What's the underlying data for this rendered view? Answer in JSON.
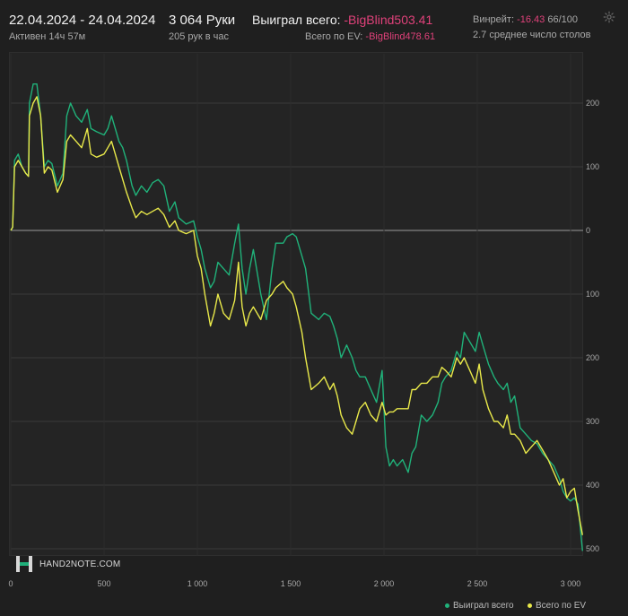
{
  "header": {
    "date_range": "22.04.2024 - 24.04.2024",
    "active": "Активен 14ч 57м",
    "hands": "3 064 Руки",
    "hands_per_hour": "205 рук в час",
    "won_label": "Выиграл всего:",
    "won_value": "-BigBlind503.41",
    "ev_label": "Всего по EV:",
    "ev_value": "-BigBlind478.61",
    "winrate_label": "Винрейт:",
    "winrate_value": "-16.43",
    "winrate_suffix": "66/100",
    "avg_tables": "2.7 среднее число столов"
  },
  "brand": {
    "logo_text": "HAND2NOTE.COM"
  },
  "icons": {
    "settings": "gear-icon",
    "logo": "hand2note-logo-icon"
  },
  "colors": {
    "won": "#20b27a",
    "ev": "#e9e94a",
    "negative": "#e0417a",
    "background": "#1f1f1f"
  },
  "chart_data": {
    "type": "line",
    "xlim": [
      0,
      3064
    ],
    "ylim": [
      -500,
      250
    ],
    "x_ticks": [
      0,
      500,
      1000,
      1500,
      2000,
      2500,
      3000
    ],
    "x_tick_labels": [
      "0",
      "500",
      "1 000",
      "1 500",
      "2 000",
      "2 500",
      "3 000"
    ],
    "y_ticks": [
      200,
      100,
      0,
      -100,
      -200,
      -300,
      -400,
      -500
    ],
    "y_tick_labels": [
      "200",
      "100",
      "0",
      "100",
      "200",
      "300",
      "400",
      "500"
    ],
    "grid": true,
    "legend_position": "bottom-right",
    "series": [
      {
        "name": "Выиграл всего",
        "color": "#20b27a",
        "points": [
          [
            0,
            0
          ],
          [
            10,
            5
          ],
          [
            20,
            110
          ],
          [
            40,
            120
          ],
          [
            60,
            100
          ],
          [
            80,
            90
          ],
          [
            95,
            85
          ],
          [
            100,
            200
          ],
          [
            120,
            230
          ],
          [
            140,
            230
          ],
          [
            160,
            180
          ],
          [
            180,
            100
          ],
          [
            200,
            110
          ],
          [
            220,
            105
          ],
          [
            250,
            70
          ],
          [
            280,
            90
          ],
          [
            300,
            180
          ],
          [
            320,
            200
          ],
          [
            350,
            180
          ],
          [
            380,
            170
          ],
          [
            410,
            190
          ],
          [
            430,
            160
          ],
          [
            460,
            155
          ],
          [
            500,
            150
          ],
          [
            520,
            160
          ],
          [
            540,
            180
          ],
          [
            560,
            160
          ],
          [
            580,
            140
          ],
          [
            600,
            130
          ],
          [
            620,
            110
          ],
          [
            650,
            70
          ],
          [
            670,
            55
          ],
          [
            700,
            70
          ],
          [
            730,
            60
          ],
          [
            760,
            75
          ],
          [
            790,
            80
          ],
          [
            820,
            70
          ],
          [
            850,
            30
          ],
          [
            880,
            45
          ],
          [
            900,
            20
          ],
          [
            940,
            10
          ],
          [
            980,
            15
          ],
          [
            1000,
            -10
          ],
          [
            1020,
            -30
          ],
          [
            1040,
            -60
          ],
          [
            1070,
            -90
          ],
          [
            1090,
            -80
          ],
          [
            1110,
            -50
          ],
          [
            1140,
            -60
          ],
          [
            1170,
            -70
          ],
          [
            1200,
            -20
          ],
          [
            1220,
            10
          ],
          [
            1240,
            -60
          ],
          [
            1260,
            -100
          ],
          [
            1280,
            -60
          ],
          [
            1300,
            -30
          ],
          [
            1340,
            -100
          ],
          [
            1370,
            -140
          ],
          [
            1400,
            -60
          ],
          [
            1420,
            -20
          ],
          [
            1460,
            -20
          ],
          [
            1480,
            -10
          ],
          [
            1510,
            -5
          ],
          [
            1530,
            -10
          ],
          [
            1560,
            -40
          ],
          [
            1580,
            -60
          ],
          [
            1610,
            -130
          ],
          [
            1650,
            -140
          ],
          [
            1680,
            -130
          ],
          [
            1710,
            -135
          ],
          [
            1730,
            -150
          ],
          [
            1750,
            -170
          ],
          [
            1770,
            -200
          ],
          [
            1800,
            -180
          ],
          [
            1830,
            -200
          ],
          [
            1850,
            -220
          ],
          [
            1870,
            -230
          ],
          [
            1900,
            -230
          ],
          [
            1930,
            -250
          ],
          [
            1960,
            -270
          ],
          [
            1990,
            -220
          ],
          [
            2010,
            -340
          ],
          [
            2030,
            -370
          ],
          [
            2050,
            -360
          ],
          [
            2070,
            -370
          ],
          [
            2100,
            -360
          ],
          [
            2130,
            -380
          ],
          [
            2150,
            -350
          ],
          [
            2170,
            -340
          ],
          [
            2200,
            -290
          ],
          [
            2230,
            -300
          ],
          [
            2260,
            -290
          ],
          [
            2290,
            -270
          ],
          [
            2310,
            -240
          ],
          [
            2330,
            -230
          ],
          [
            2360,
            -220
          ],
          [
            2390,
            -190
          ],
          [
            2410,
            -200
          ],
          [
            2430,
            -160
          ],
          [
            2460,
            -175
          ],
          [
            2490,
            -190
          ],
          [
            2510,
            -160
          ],
          [
            2530,
            -180
          ],
          [
            2560,
            -210
          ],
          [
            2590,
            -230
          ],
          [
            2610,
            -240
          ],
          [
            2640,
            -250
          ],
          [
            2660,
            -240
          ],
          [
            2680,
            -270
          ],
          [
            2700,
            -260
          ],
          [
            2730,
            -310
          ],
          [
            2760,
            -320
          ],
          [
            2790,
            -330
          ],
          [
            2820,
            -335
          ],
          [
            2850,
            -350
          ],
          [
            2880,
            -360
          ],
          [
            2910,
            -370
          ],
          [
            2940,
            -390
          ],
          [
            2960,
            -410
          ],
          [
            2980,
            -420
          ],
          [
            3000,
            -425
          ],
          [
            3020,
            -420
          ],
          [
            3040,
            -430
          ],
          [
            3064,
            -503.41
          ]
        ]
      },
      {
        "name": "Всего по EV",
        "color": "#e9e94a",
        "points": [
          [
            0,
            0
          ],
          [
            10,
            5
          ],
          [
            20,
            100
          ],
          [
            40,
            110
          ],
          [
            60,
            100
          ],
          [
            80,
            90
          ],
          [
            95,
            85
          ],
          [
            100,
            180
          ],
          [
            120,
            200
          ],
          [
            140,
            210
          ],
          [
            160,
            180
          ],
          [
            180,
            90
          ],
          [
            200,
            100
          ],
          [
            220,
            95
          ],
          [
            250,
            60
          ],
          [
            280,
            80
          ],
          [
            300,
            140
          ],
          [
            320,
            150
          ],
          [
            350,
            140
          ],
          [
            380,
            130
          ],
          [
            410,
            160
          ],
          [
            430,
            120
          ],
          [
            460,
            115
          ],
          [
            500,
            120
          ],
          [
            520,
            130
          ],
          [
            540,
            140
          ],
          [
            560,
            120
          ],
          [
            580,
            100
          ],
          [
            600,
            80
          ],
          [
            620,
            60
          ],
          [
            650,
            35
          ],
          [
            670,
            20
          ],
          [
            700,
            30
          ],
          [
            730,
            25
          ],
          [
            760,
            30
          ],
          [
            790,
            35
          ],
          [
            820,
            25
          ],
          [
            850,
            5
          ],
          [
            880,
            15
          ],
          [
            900,
            0
          ],
          [
            940,
            -5
          ],
          [
            980,
            0
          ],
          [
            1000,
            -40
          ],
          [
            1020,
            -60
          ],
          [
            1040,
            -100
          ],
          [
            1070,
            -150
          ],
          [
            1090,
            -130
          ],
          [
            1110,
            -100
          ],
          [
            1140,
            -130
          ],
          [
            1170,
            -140
          ],
          [
            1200,
            -110
          ],
          [
            1220,
            -50
          ],
          [
            1240,
            -120
          ],
          [
            1260,
            -150
          ],
          [
            1280,
            -130
          ],
          [
            1300,
            -120
          ],
          [
            1340,
            -140
          ],
          [
            1370,
            -110
          ],
          [
            1400,
            -100
          ],
          [
            1420,
            -90
          ],
          [
            1460,
            -80
          ],
          [
            1480,
            -90
          ],
          [
            1510,
            -100
          ],
          [
            1530,
            -120
          ],
          [
            1560,
            -160
          ],
          [
            1580,
            -200
          ],
          [
            1610,
            -250
          ],
          [
            1650,
            -240
          ],
          [
            1680,
            -230
          ],
          [
            1710,
            -250
          ],
          [
            1730,
            -240
          ],
          [
            1750,
            -260
          ],
          [
            1770,
            -290
          ],
          [
            1800,
            -310
          ],
          [
            1830,
            -320
          ],
          [
            1850,
            -300
          ],
          [
            1870,
            -280
          ],
          [
            1900,
            -270
          ],
          [
            1930,
            -290
          ],
          [
            1960,
            -300
          ],
          [
            1990,
            -270
          ],
          [
            2010,
            -290
          ],
          [
            2030,
            -285
          ],
          [
            2050,
            -285
          ],
          [
            2070,
            -280
          ],
          [
            2100,
            -280
          ],
          [
            2130,
            -280
          ],
          [
            2150,
            -250
          ],
          [
            2170,
            -250
          ],
          [
            2200,
            -240
          ],
          [
            2230,
            -240
          ],
          [
            2260,
            -230
          ],
          [
            2290,
            -230
          ],
          [
            2310,
            -215
          ],
          [
            2330,
            -220
          ],
          [
            2360,
            -230
          ],
          [
            2390,
            -200
          ],
          [
            2410,
            -210
          ],
          [
            2430,
            -200
          ],
          [
            2460,
            -220
          ],
          [
            2490,
            -240
          ],
          [
            2510,
            -210
          ],
          [
            2530,
            -250
          ],
          [
            2560,
            -280
          ],
          [
            2590,
            -300
          ],
          [
            2610,
            -300
          ],
          [
            2640,
            -310
          ],
          [
            2660,
            -290
          ],
          [
            2680,
            -320
          ],
          [
            2700,
            -320
          ],
          [
            2730,
            -330
          ],
          [
            2760,
            -350
          ],
          [
            2790,
            -340
          ],
          [
            2820,
            -330
          ],
          [
            2850,
            -345
          ],
          [
            2880,
            -360
          ],
          [
            2910,
            -380
          ],
          [
            2940,
            -400
          ],
          [
            2960,
            -390
          ],
          [
            2980,
            -420
          ],
          [
            3000,
            -410
          ],
          [
            3020,
            -405
          ],
          [
            3040,
            -440
          ],
          [
            3064,
            -478.61
          ]
        ]
      }
    ]
  }
}
